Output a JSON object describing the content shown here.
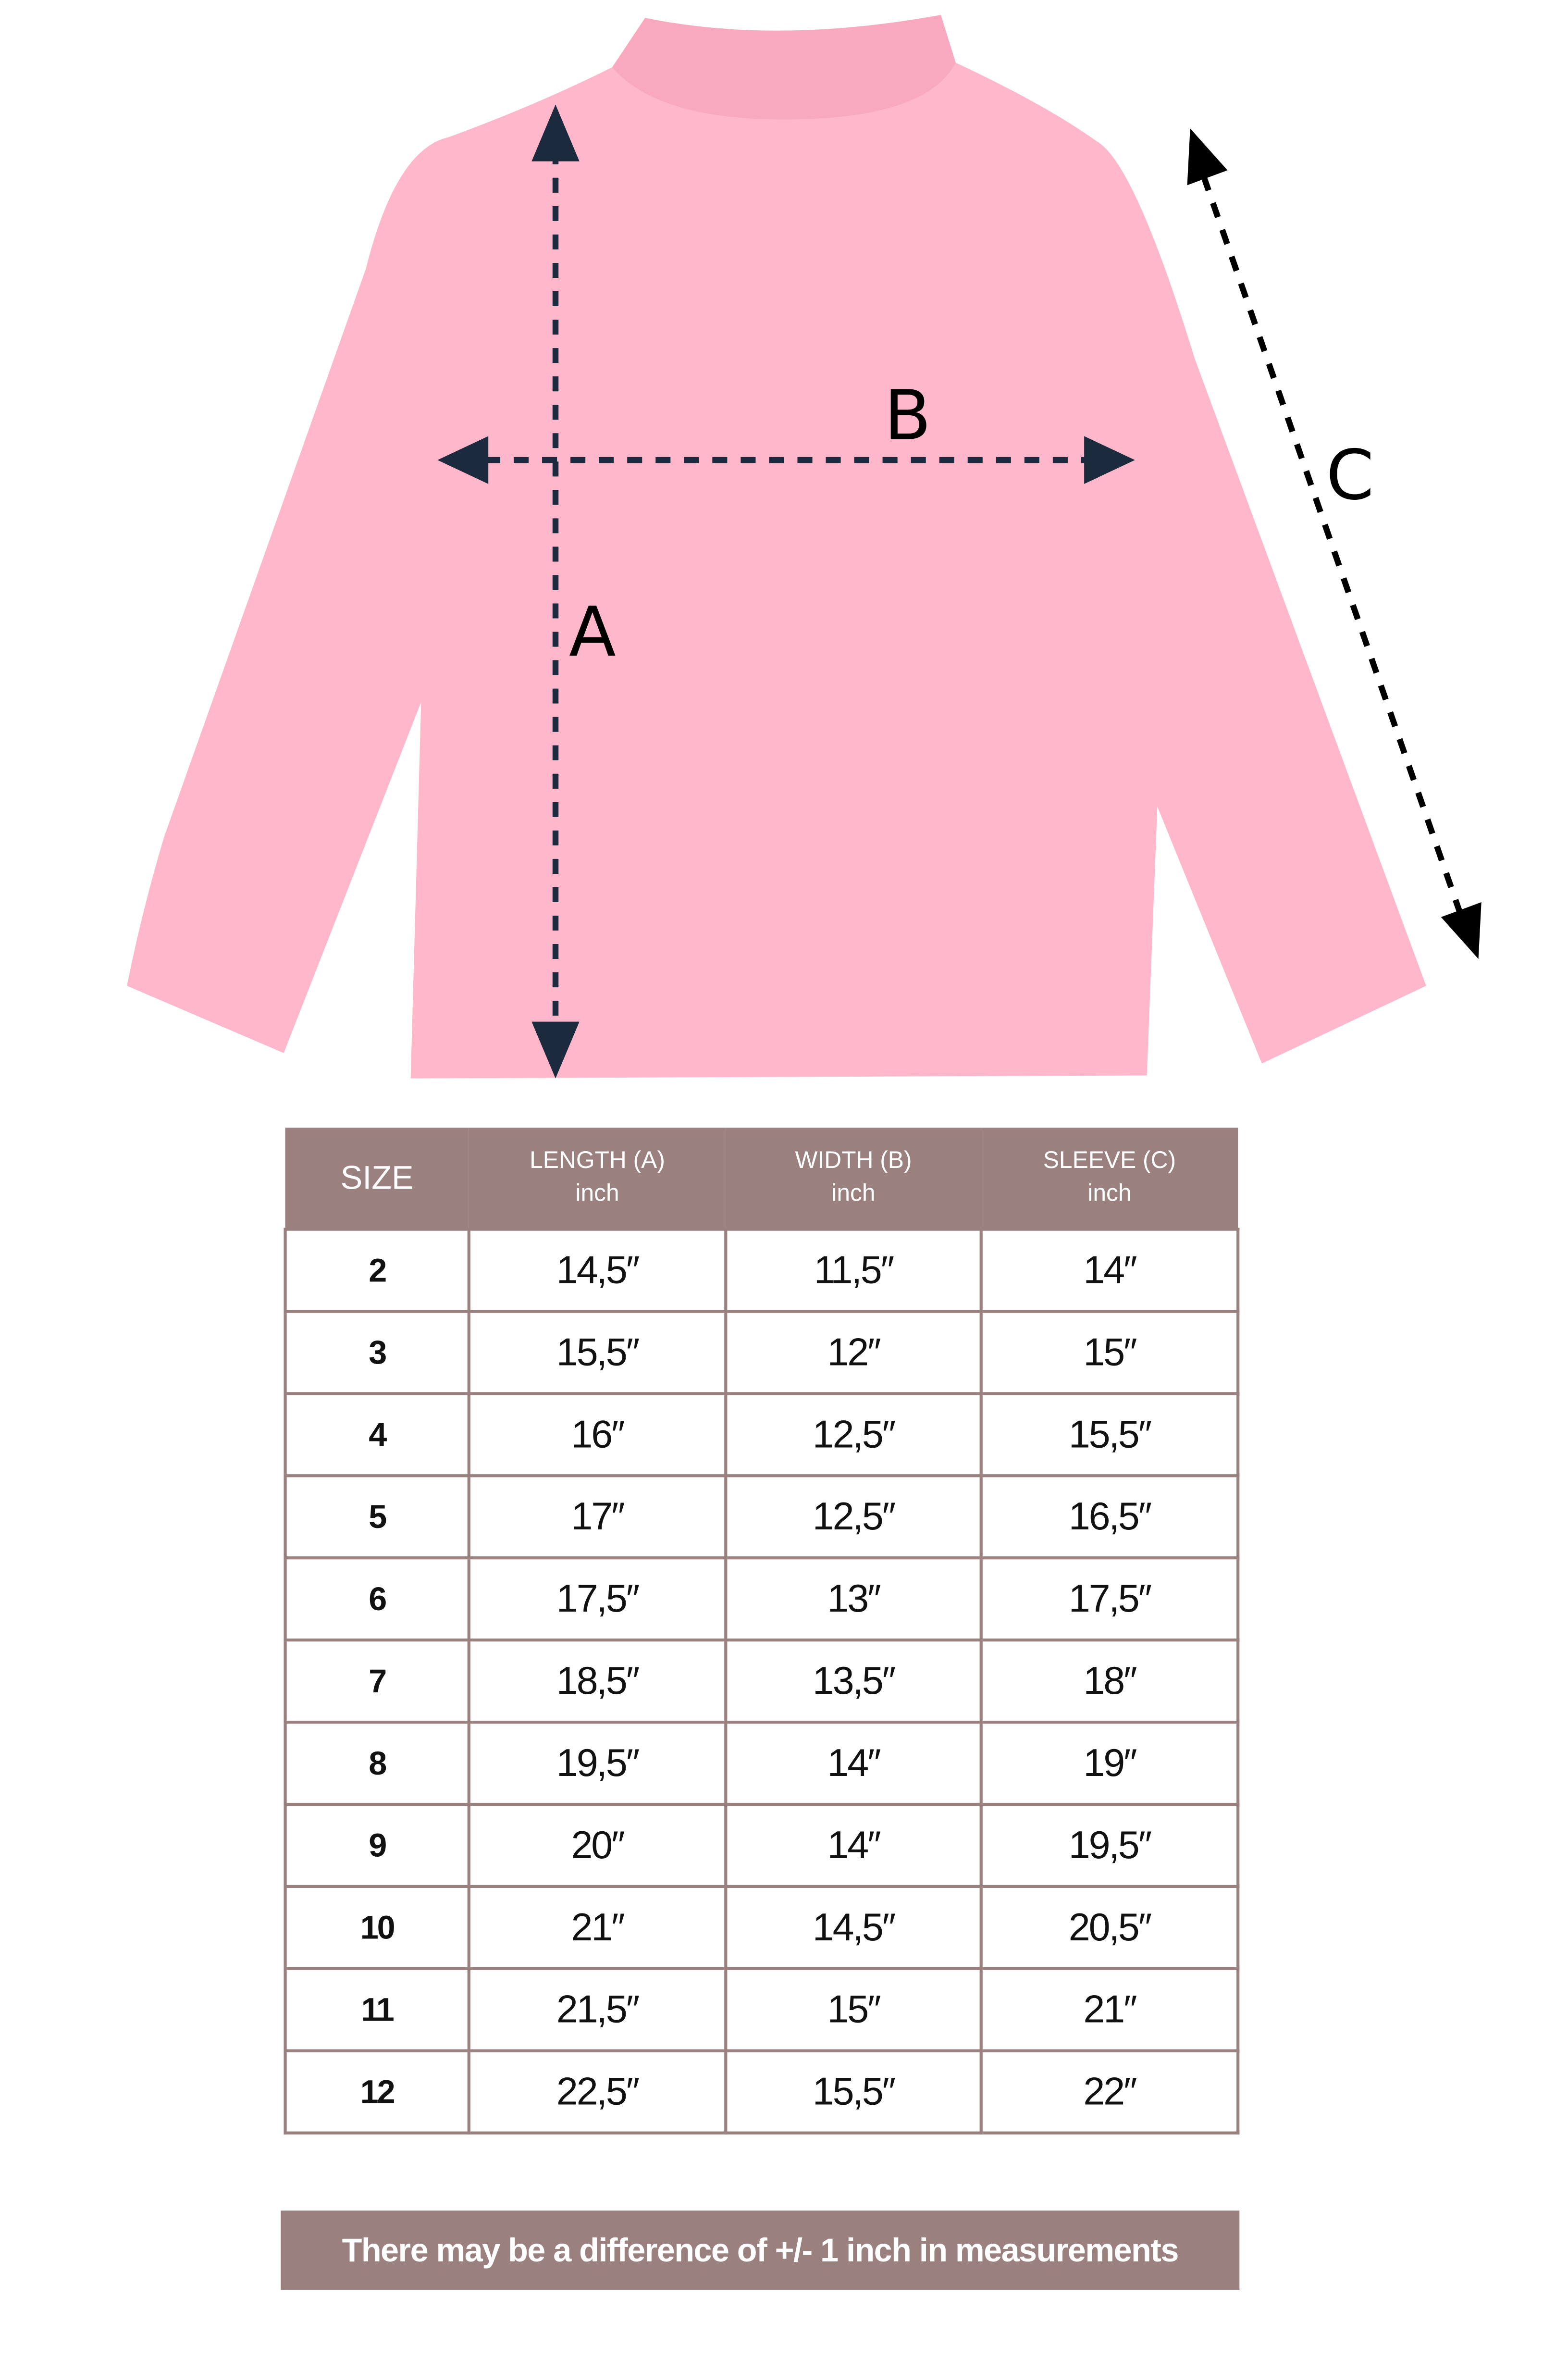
{
  "colors": {
    "shirt": "#ffb7cb",
    "arrow": "#1b2a3c",
    "table_header": "#9b8080"
  },
  "diagram": {
    "label_a": "A",
    "label_b": "B",
    "label_c": "C"
  },
  "table": {
    "headers": [
      {
        "title": "SIZE",
        "unit": ""
      },
      {
        "title": "LENGTH (A)",
        "unit": "inch"
      },
      {
        "title": "WIDTH (B)",
        "unit": "inch"
      },
      {
        "title": "SLEEVE (C)",
        "unit": "inch"
      }
    ],
    "rows": [
      [
        "2",
        "14,5″",
        "11,5″",
        "14″"
      ],
      [
        "3",
        "15,5″",
        "12″",
        "15″"
      ],
      [
        "4",
        "16″",
        "12,5″",
        "15,5″"
      ],
      [
        "5",
        "17″",
        "12,5″",
        "16,5″"
      ],
      [
        "6",
        "17,5″",
        "13″",
        "17,5″"
      ],
      [
        "7",
        "18,5″",
        "13,5″",
        "18″"
      ],
      [
        "8",
        "19,5″",
        "14″",
        "19″"
      ],
      [
        "9",
        "20″",
        "14″",
        "19,5″"
      ],
      [
        "10",
        "21″",
        "14,5″",
        "20,5″"
      ],
      [
        "11",
        "21,5″",
        "15″",
        "21″"
      ],
      [
        "12",
        "22,5″",
        "15,5″",
        "22″"
      ]
    ]
  },
  "note": "There may be a difference of +/- 1 inch in measurements"
}
